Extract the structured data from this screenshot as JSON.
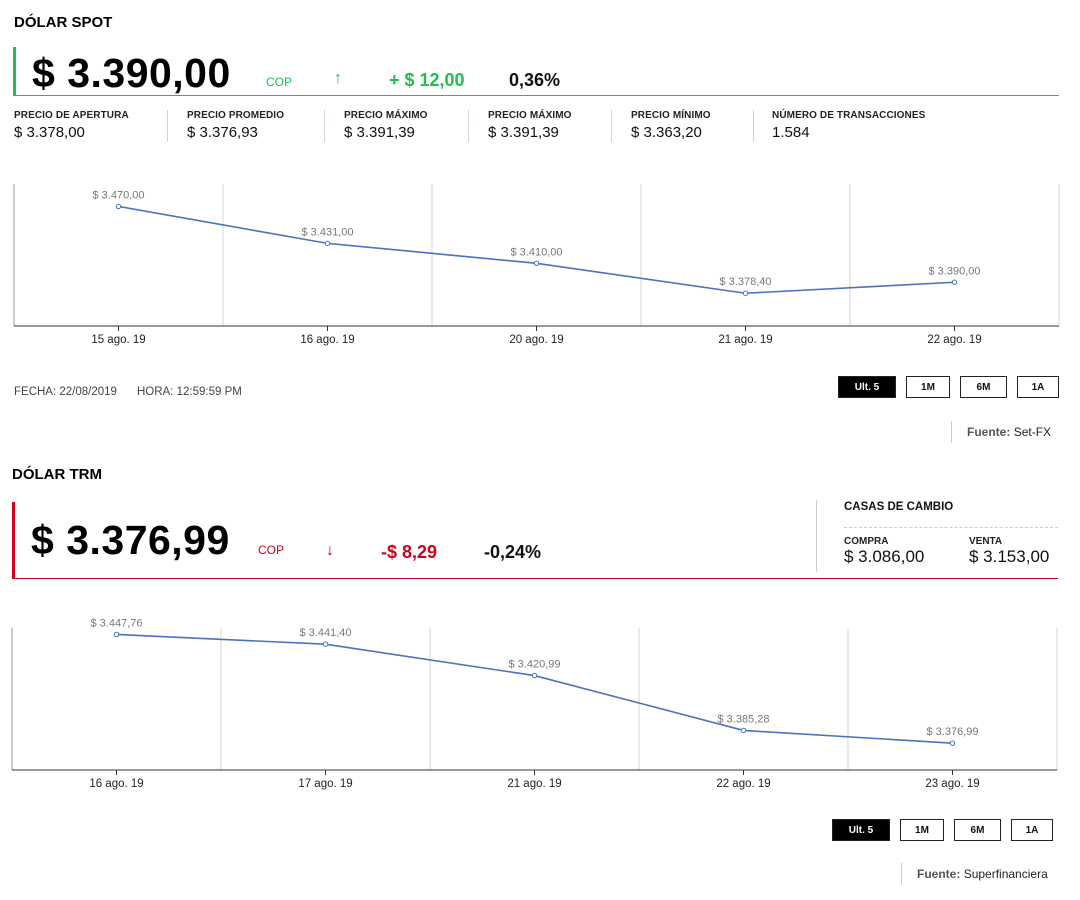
{
  "spot": {
    "title": "DÓLAR SPOT",
    "price": "$ 3.390,00",
    "currency": "COP",
    "change": "+ $ 12,00",
    "percent": "0,36%",
    "trend_icon": "arrow-up-icon",
    "accent": "#1fbf4f",
    "stats": [
      {
        "label": "PRECIO DE APERTURA",
        "value": "$ 3.378,00"
      },
      {
        "label": "PRECIO PROMEDIO",
        "value": "$ 3.376,93"
      },
      {
        "label": "PRECIO MÁXIMO",
        "value": "$ 3.391,39"
      },
      {
        "label": "PRECIO MÁXIMO",
        "value": "$ 3.391,39"
      },
      {
        "label": "PRECIO MÍNIMO",
        "value": "$ 3.363,20"
      },
      {
        "label": "NÚMERO DE TRANSACCIONES",
        "value": "1.584"
      }
    ],
    "fecha": "FECHA: 22/08/2019",
    "hora": "HORA: 12:59:59 PM",
    "ranges": [
      "Ult. 5",
      "1M",
      "6M",
      "1A"
    ],
    "active_range": "Ult. 5",
    "source_label": "Fuente:",
    "source_value": "Set-FX"
  },
  "trm": {
    "title": "DÓLAR TRM",
    "price": "$ 3.376,99",
    "currency": "COP",
    "change": "-$ 8,29",
    "percent": "-0,24%",
    "trend_icon": "arrow-down-icon",
    "accent": "#d0021b",
    "casas": {
      "title": "CASAS DE CAMBIO",
      "compra_label": "COMPRA",
      "compra_value": "$ 3.086,00",
      "venta_label": "VENTA",
      "venta_value": "$ 3.153,00"
    },
    "ranges": [
      "Ult. 5",
      "1M",
      "6M",
      "1A"
    ],
    "active_range": "Ult. 5",
    "source_label": "Fuente:",
    "source_value": "Superfinanciera"
  },
  "chart_data": [
    {
      "type": "line",
      "title": "",
      "categories": [
        "15 ago. 19",
        "16 ago. 19",
        "20 ago. 19",
        "21 ago. 19",
        "22 ago. 19"
      ],
      "values": [
        3470.0,
        3431.0,
        3410.0,
        3378.4,
        3390.0
      ],
      "data_labels": [
        "$ 3.470,00",
        "$ 3.431,00",
        "$ 3.410,00",
        "$ 3.378,40",
        "$ 3.390,00"
      ],
      "ylim": [
        3366,
        3481
      ],
      "grid": "vertical",
      "line_color": "#4a72bf"
    },
    {
      "type": "line",
      "title": "",
      "categories": [
        "16 ago. 19",
        "17 ago. 19",
        "21 ago. 19",
        "22 ago. 19",
        "23 ago. 19"
      ],
      "values": [
        3447.76,
        3441.4,
        3420.99,
        3385.28,
        3376.99
      ],
      "data_labels": [
        "$ 3.447,76",
        "$ 3.441,40",
        "$ 3.420,99",
        "$ 3.385,28",
        "$ 3.376,99"
      ],
      "ylim": [
        3368,
        3450
      ],
      "grid": "vertical",
      "line_color": "#4a72bf"
    }
  ]
}
